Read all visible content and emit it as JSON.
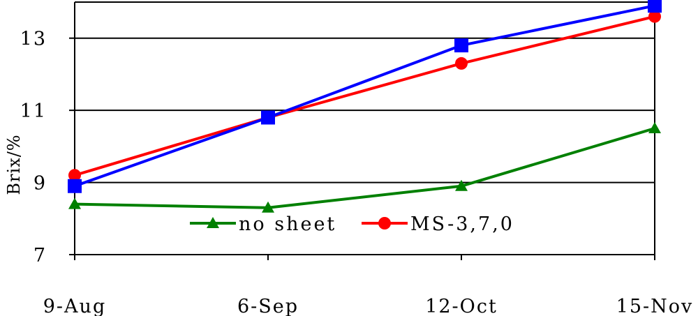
{
  "chart_data": {
    "type": "line",
    "title": "",
    "xlabel": "",
    "ylabel": "Brix/%",
    "categories": [
      "9-Aug",
      "6-Sep",
      "12-Oct",
      "15-Nov"
    ],
    "ylim": [
      7,
      14
    ],
    "yticks": [
      7,
      9,
      11,
      13
    ],
    "grid": "horizontal",
    "legend_position": "bottom-center",
    "series": [
      {
        "name": "no sheet",
        "color": "#008000",
        "marker": "triangle",
        "values": [
          8.4,
          8.3,
          8.9,
          10.5
        ]
      },
      {
        "name": "MS-3,7,0",
        "color": "#ff0000",
        "marker": "circle",
        "values": [
          9.2,
          10.8,
          12.3,
          13.6
        ]
      },
      {
        "name": "",
        "color": "#0000ff",
        "marker": "square",
        "values": [
          8.9,
          10.8,
          12.8,
          13.9
        ]
      }
    ]
  }
}
